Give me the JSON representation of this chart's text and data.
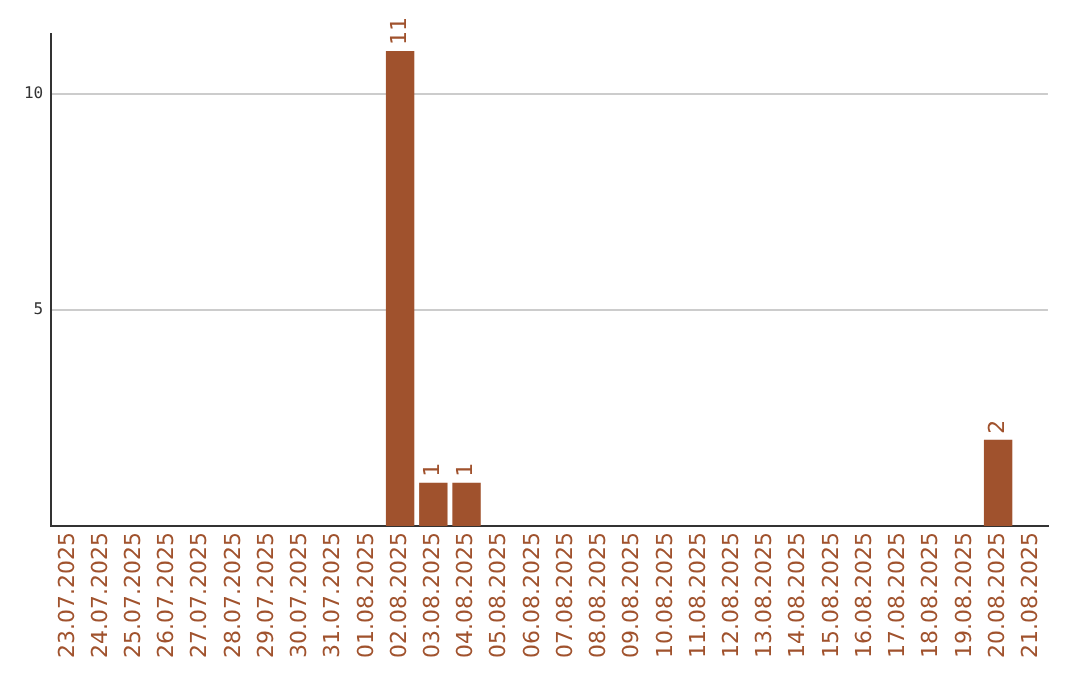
{
  "chart_data": {
    "type": "bar",
    "categories": [
      "23.07.2025",
      "24.07.2025",
      "25.07.2025",
      "26.07.2025",
      "27.07.2025",
      "28.07.2025",
      "29.07.2025",
      "30.07.2025",
      "31.07.2025",
      "01.08.2025",
      "02.08.2025",
      "03.08.2025",
      "04.08.2025",
      "05.08.2025",
      "06.08.2025",
      "07.08.2025",
      "08.08.2025",
      "09.08.2025",
      "10.08.2025",
      "11.08.2025",
      "12.08.2025",
      "13.08.2025",
      "14.08.2025",
      "15.08.2025",
      "16.08.2025",
      "17.08.2025",
      "18.08.2025",
      "19.08.2025",
      "20.08.2025",
      "21.08.2025"
    ],
    "values": [
      0,
      0,
      0,
      0,
      0,
      0,
      0,
      0,
      0,
      0,
      11,
      1,
      1,
      0,
      0,
      0,
      0,
      0,
      0,
      0,
      0,
      0,
      0,
      0,
      0,
      0,
      0,
      0,
      2,
      0
    ],
    "value_labels": [
      null,
      null,
      null,
      null,
      null,
      null,
      null,
      null,
      null,
      null,
      "11",
      "1",
      "1",
      null,
      null,
      null,
      null,
      null,
      null,
      null,
      null,
      null,
      null,
      null,
      null,
      null,
      null,
      null,
      "2",
      null
    ],
    "color": "#a0522d",
    "ylim": [
      0,
      11.4
    ],
    "yticks": [
      5,
      10
    ],
    "grid": "y"
  }
}
